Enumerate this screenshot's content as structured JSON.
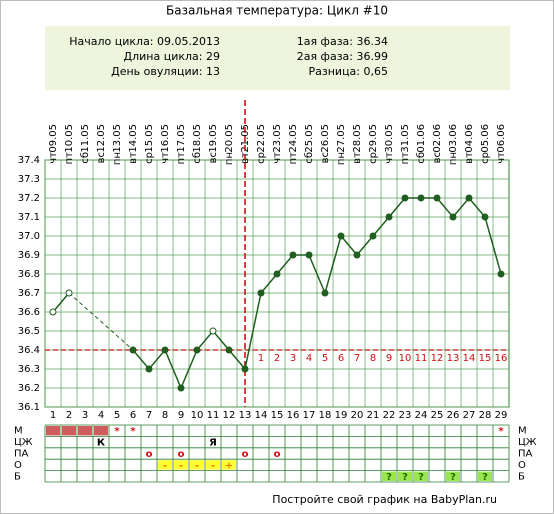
{
  "chart_data": {
    "type": "line",
    "title": "Базальная температура: Цикл #10",
    "info_left": [
      "Начало цикла: 09.05.2013",
      "Длина цикла: 29",
      "День овуляции: 13"
    ],
    "info_right": [
      "1ая фаза: 36.34",
      "2ая фаза: 36.99",
      "Разница: 0,65"
    ],
    "categories": [
      "09.05",
      "10.05",
      "11.05",
      "12.05",
      "13.05",
      "14.05",
      "15.05",
      "16.05",
      "17.05",
      "18.05",
      "19.05",
      "20.05",
      "21.05",
      "22.05",
      "23.05",
      "24.05",
      "25.05",
      "26.05",
      "27.05",
      "28.05",
      "29.05",
      "30.05",
      "31.05",
      "01.06",
      "02.06",
      "03.06",
      "04.06",
      "05.06",
      "06.06"
    ],
    "weekdays": [
      "чт",
      "пт",
      "сб",
      "вс",
      "пн",
      "вт",
      "ср",
      "чт",
      "пт",
      "сб",
      "вс",
      "пн",
      "вт",
      "ср",
      "чт",
      "пт",
      "сб",
      "вс",
      "пн",
      "вт",
      "ср",
      "чт",
      "пт",
      "сб",
      "вс",
      "пн",
      "вт",
      "ср",
      "чт"
    ],
    "days": [
      1,
      2,
      3,
      4,
      5,
      6,
      7,
      8,
      9,
      10,
      11,
      12,
      13,
      14,
      15,
      16,
      17,
      18,
      19,
      20,
      21,
      22,
      23,
      24,
      25,
      26,
      27,
      28,
      29
    ],
    "series": [
      {
        "color": "#1f5f1f",
        "values": [
          36.6,
          36.7,
          null,
          null,
          null,
          36.4,
          36.3,
          36.4,
          36.2,
          36.4,
          36.5,
          36.4,
          36.3,
          36.7,
          36.8,
          36.9,
          36.9,
          36.7,
          37.0,
          36.9,
          37.0,
          37.1,
          37.2,
          37.2,
          37.2,
          37.1,
          37.2,
          37.1,
          36.8
        ],
        "excluded": [
          true,
          true,
          false,
          false,
          false,
          false,
          false,
          false,
          false,
          false,
          true,
          false,
          false,
          false,
          false,
          false,
          false,
          false,
          false,
          false,
          false,
          false,
          false,
          false,
          false,
          false,
          false,
          false,
          false
        ]
      }
    ],
    "ylim": [
      36.1,
      37.4
    ],
    "yticks": [
      36.1,
      36.2,
      36.3,
      36.4,
      36.5,
      36.6,
      36.7,
      36.8,
      36.9,
      {
        "value": 37,
        "label": "37.0"
      },
      37.1,
      37.2,
      37.3,
      37.4
    ],
    "grid": true,
    "coverline": 36.4,
    "ovulation_day": 13,
    "marker_color": "#cc1111",
    "luteal_day_labels": [
      1,
      2,
      3,
      4,
      5,
      6,
      7,
      8,
      9,
      10,
      11,
      12,
      13,
      14,
      15,
      16
    ],
    "rows": [
      {
        "label": "М",
        "marks": [
          {
            "day": 1,
            "fill": "#cd5c5c"
          },
          {
            "day": 2,
            "fill": "#cd5c5c"
          },
          {
            "day": 3,
            "fill": "#cd5c5c"
          },
          {
            "day": 4,
            "fill": "#cd5c5c"
          },
          {
            "day": 5,
            "text": "*"
          },
          {
            "day": 6,
            "text": "*"
          },
          {
            "day": 29,
            "text": "*"
          }
        ]
      },
      {
        "label": "ЦЖ",
        "marks": [
          {
            "day": 4,
            "text": "К"
          },
          {
            "day": 11,
            "text": "Я"
          }
        ]
      },
      {
        "label": "ПА",
        "marks": [
          {
            "day": 7,
            "text": "о"
          },
          {
            "day": 9,
            "text": "о"
          },
          {
            "day": 13,
            "text": "о"
          },
          {
            "day": 15,
            "text": "о"
          }
        ]
      },
      {
        "label": "О",
        "marks": [
          {
            "day": 8,
            "text": "–",
            "fill": "#ffff33"
          },
          {
            "day": 9,
            "text": "–",
            "fill": "#ffff33"
          },
          {
            "day": 10,
            "text": "–",
            "fill": "#ffff33"
          },
          {
            "day": 11,
            "text": "–",
            "fill": "#ffff33"
          },
          {
            "day": 12,
            "text": "+",
            "fill": "#ffff33"
          }
        ]
      },
      {
        "label": "Б",
        "marks": [
          {
            "day": 22,
            "text": "?",
            "fill": "#99e64d"
          },
          {
            "day": 23,
            "text": "?",
            "fill": "#99e64d"
          },
          {
            "day": 24,
            "text": "?",
            "fill": "#99e64d"
          },
          {
            "day": 26,
            "text": "?",
            "fill": "#99e64d"
          },
          {
            "day": 28,
            "text": "?",
            "fill": "#99e64d"
          }
        ]
      }
    ],
    "footer": "Постройте свой график на BabyPlan.ru"
  }
}
